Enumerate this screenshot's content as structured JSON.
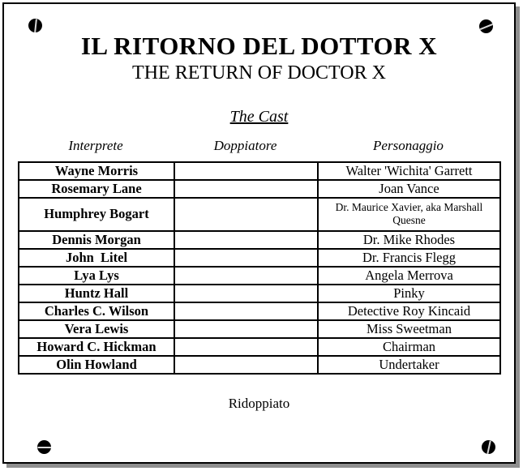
{
  "page": {
    "title": "IL RITORNO DEL DOTTOR X",
    "subtitle": "THE RETURN OF DOCTOR X",
    "section_heading": "The Cast",
    "footer_note": "Ridoppiato"
  },
  "cast_table": {
    "columns": [
      "Interprete",
      "Doppiatore",
      "Personaggio"
    ],
    "rows": [
      {
        "interprete": "Wayne Morris",
        "doppiatore": "",
        "personaggio": "Walter 'Wichita' Garrett",
        "small": false
      },
      {
        "interprete": "Rosemary Lane",
        "doppiatore": "",
        "personaggio": "Joan Vance",
        "small": false
      },
      {
        "interprete": "Humphrey Bogart",
        "doppiatore": "",
        "personaggio": "Dr. Maurice Xavier, aka Marshall Quesne",
        "small": true
      },
      {
        "interprete": "Dennis Morgan",
        "doppiatore": "",
        "personaggio": "Dr. Mike Rhodes",
        "small": false
      },
      {
        "interprete": "John  Litel",
        "doppiatore": "",
        "personaggio": "Dr. Francis Flegg",
        "small": false
      },
      {
        "interprete": "Lya Lys",
        "doppiatore": "",
        "personaggio": "Angela Merrova",
        "small": false
      },
      {
        "interprete": "Huntz Hall",
        "doppiatore": "",
        "personaggio": "Pinky",
        "small": false
      },
      {
        "interprete": "Charles C. Wilson",
        "doppiatore": "",
        "personaggio": "Detective Roy Kincaid",
        "small": false
      },
      {
        "interprete": "Vera Lewis",
        "doppiatore": "",
        "personaggio": "Miss Sweetman",
        "small": false
      },
      {
        "interprete": "Howard C. Hickman",
        "doppiatore": "",
        "personaggio": "Chairman",
        "small": false
      },
      {
        "interprete": "Olin Howland",
        "doppiatore": "",
        "personaggio": "Undertaker",
        "small": false
      }
    ]
  },
  "icons": {
    "screw": "screw-icon"
  },
  "colors": {
    "text": "#000000",
    "panel_border": "#000000",
    "panel_background": "#ffffff",
    "shadow": "#8f8f8f",
    "screw": "#000000",
    "screw_slot": "#d8d8d8"
  }
}
